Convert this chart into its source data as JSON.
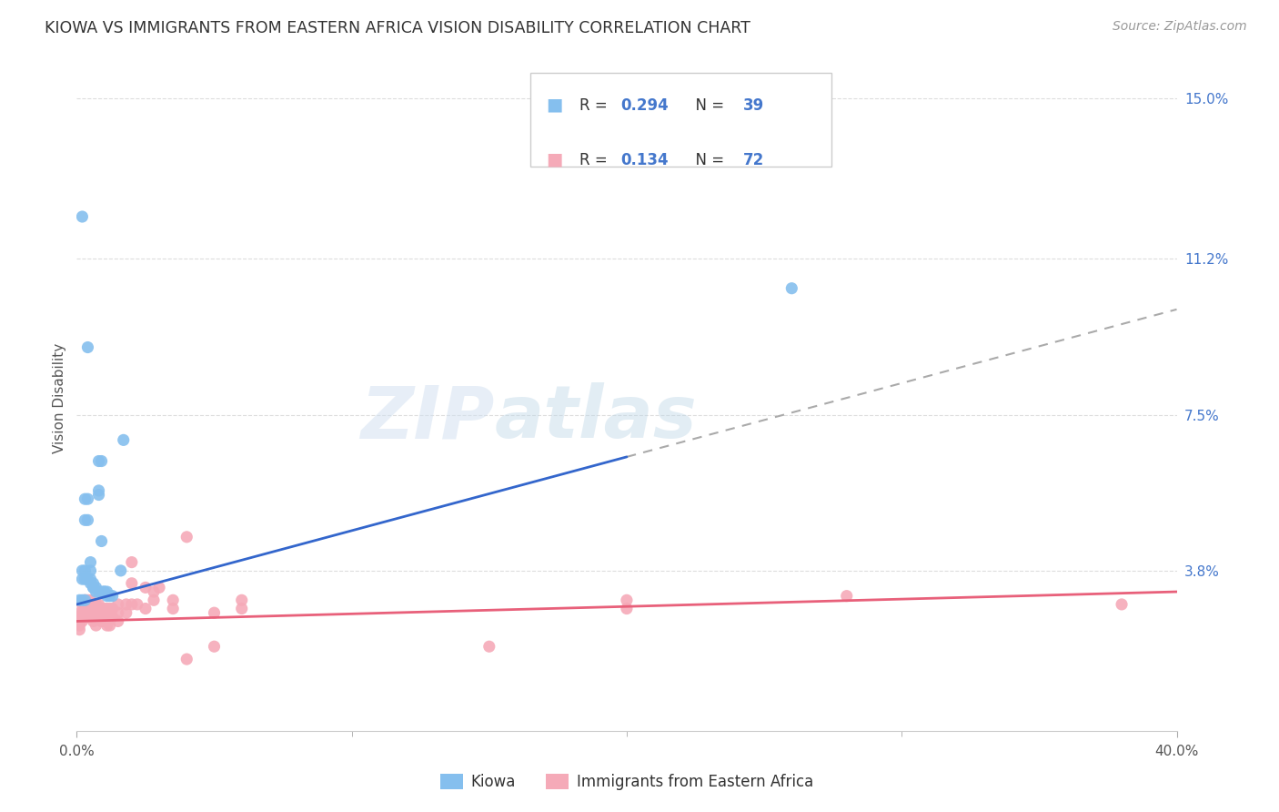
{
  "title": "KIOWA VS IMMIGRANTS FROM EASTERN AFRICA VISION DISABILITY CORRELATION CHART",
  "source": "Source: ZipAtlas.com",
  "ylabel": "Vision Disability",
  "ytick_labels": [
    "3.8%",
    "7.5%",
    "11.2%",
    "15.0%"
  ],
  "ytick_values": [
    0.038,
    0.075,
    0.112,
    0.15
  ],
  "xmin": 0.0,
  "xmax": 0.4,
  "ymin": 0.0,
  "ymax": 0.158,
  "legend1_R": "0.294",
  "legend1_N": "39",
  "legend2_R": "0.134",
  "legend2_N": "72",
  "blue_color": "#85bfee",
  "pink_color": "#f5aab8",
  "trendline_blue_color": "#3366cc",
  "trendline_pink_color": "#e8607a",
  "trendline_dashed_color": "#aaaaaa",
  "watermark_zip": "ZIP",
  "watermark_atlas": "atlas",
  "background_color": "#ffffff",
  "kiowa_points": [
    [
      0.002,
      0.122
    ],
    [
      0.004,
      0.091
    ],
    [
      0.008,
      0.064
    ],
    [
      0.009,
      0.064
    ],
    [
      0.017,
      0.069
    ],
    [
      0.008,
      0.056
    ],
    [
      0.008,
      0.057
    ],
    [
      0.009,
      0.045
    ],
    [
      0.003,
      0.055
    ],
    [
      0.004,
      0.055
    ],
    [
      0.003,
      0.05
    ],
    [
      0.004,
      0.05
    ],
    [
      0.005,
      0.04
    ],
    [
      0.005,
      0.038
    ],
    [
      0.002,
      0.038
    ],
    [
      0.003,
      0.038
    ],
    [
      0.002,
      0.036
    ],
    [
      0.003,
      0.036
    ],
    [
      0.004,
      0.036
    ],
    [
      0.005,
      0.036
    ],
    [
      0.005,
      0.035
    ],
    [
      0.006,
      0.035
    ],
    [
      0.006,
      0.034
    ],
    [
      0.006,
      0.034
    ],
    [
      0.007,
      0.034
    ],
    [
      0.007,
      0.033
    ],
    [
      0.008,
      0.033
    ],
    [
      0.009,
      0.033
    ],
    [
      0.01,
      0.033
    ],
    [
      0.01,
      0.033
    ],
    [
      0.011,
      0.033
    ],
    [
      0.011,
      0.032
    ],
    [
      0.012,
      0.032
    ],
    [
      0.013,
      0.032
    ],
    [
      0.001,
      0.031
    ],
    [
      0.002,
      0.031
    ],
    [
      0.003,
      0.031
    ],
    [
      0.26,
      0.105
    ],
    [
      0.016,
      0.038
    ]
  ],
  "eastern_africa_points": [
    [
      0.001,
      0.028
    ],
    [
      0.001,
      0.026
    ],
    [
      0.001,
      0.025
    ],
    [
      0.001,
      0.024
    ],
    [
      0.002,
      0.03
    ],
    [
      0.002,
      0.028
    ],
    [
      0.002,
      0.027
    ],
    [
      0.002,
      0.026
    ],
    [
      0.003,
      0.031
    ],
    [
      0.003,
      0.029
    ],
    [
      0.003,
      0.028
    ],
    [
      0.003,
      0.027
    ],
    [
      0.004,
      0.031
    ],
    [
      0.004,
      0.029
    ],
    [
      0.004,
      0.028
    ],
    [
      0.004,
      0.027
    ],
    [
      0.005,
      0.031
    ],
    [
      0.005,
      0.029
    ],
    [
      0.005,
      0.028
    ],
    [
      0.005,
      0.027
    ],
    [
      0.006,
      0.03
    ],
    [
      0.006,
      0.029
    ],
    [
      0.006,
      0.027
    ],
    [
      0.006,
      0.026
    ],
    [
      0.007,
      0.03
    ],
    [
      0.007,
      0.028
    ],
    [
      0.007,
      0.027
    ],
    [
      0.007,
      0.025
    ],
    [
      0.008,
      0.03
    ],
    [
      0.008,
      0.028
    ],
    [
      0.008,
      0.027
    ],
    [
      0.009,
      0.029
    ],
    [
      0.009,
      0.028
    ],
    [
      0.009,
      0.026
    ],
    [
      0.01,
      0.029
    ],
    [
      0.01,
      0.027
    ],
    [
      0.01,
      0.026
    ],
    [
      0.011,
      0.029
    ],
    [
      0.011,
      0.027
    ],
    [
      0.011,
      0.025
    ],
    [
      0.012,
      0.029
    ],
    [
      0.012,
      0.027
    ],
    [
      0.012,
      0.025
    ],
    [
      0.013,
      0.029
    ],
    [
      0.013,
      0.027
    ],
    [
      0.015,
      0.03
    ],
    [
      0.015,
      0.028
    ],
    [
      0.015,
      0.026
    ],
    [
      0.018,
      0.03
    ],
    [
      0.018,
      0.028
    ],
    [
      0.02,
      0.035
    ],
    [
      0.02,
      0.03
    ],
    [
      0.022,
      0.03
    ],
    [
      0.025,
      0.034
    ],
    [
      0.025,
      0.029
    ],
    [
      0.028,
      0.033
    ],
    [
      0.028,
      0.031
    ],
    [
      0.03,
      0.034
    ],
    [
      0.035,
      0.031
    ],
    [
      0.035,
      0.029
    ],
    [
      0.04,
      0.046
    ],
    [
      0.02,
      0.04
    ],
    [
      0.05,
      0.028
    ],
    [
      0.05,
      0.02
    ],
    [
      0.06,
      0.031
    ],
    [
      0.06,
      0.029
    ],
    [
      0.2,
      0.031
    ],
    [
      0.2,
      0.029
    ],
    [
      0.28,
      0.032
    ],
    [
      0.38,
      0.03
    ],
    [
      0.04,
      0.017
    ],
    [
      0.15,
      0.02
    ]
  ],
  "kiowa_trendline_solid": [
    [
      0.0,
      0.03
    ],
    [
      0.2,
      0.065
    ]
  ],
  "kiowa_trendline_dashed": [
    [
      0.2,
      0.065
    ],
    [
      0.4,
      0.1
    ]
  ],
  "eastern_africa_trendline": [
    [
      0.0,
      0.026
    ],
    [
      0.4,
      0.033
    ]
  ]
}
